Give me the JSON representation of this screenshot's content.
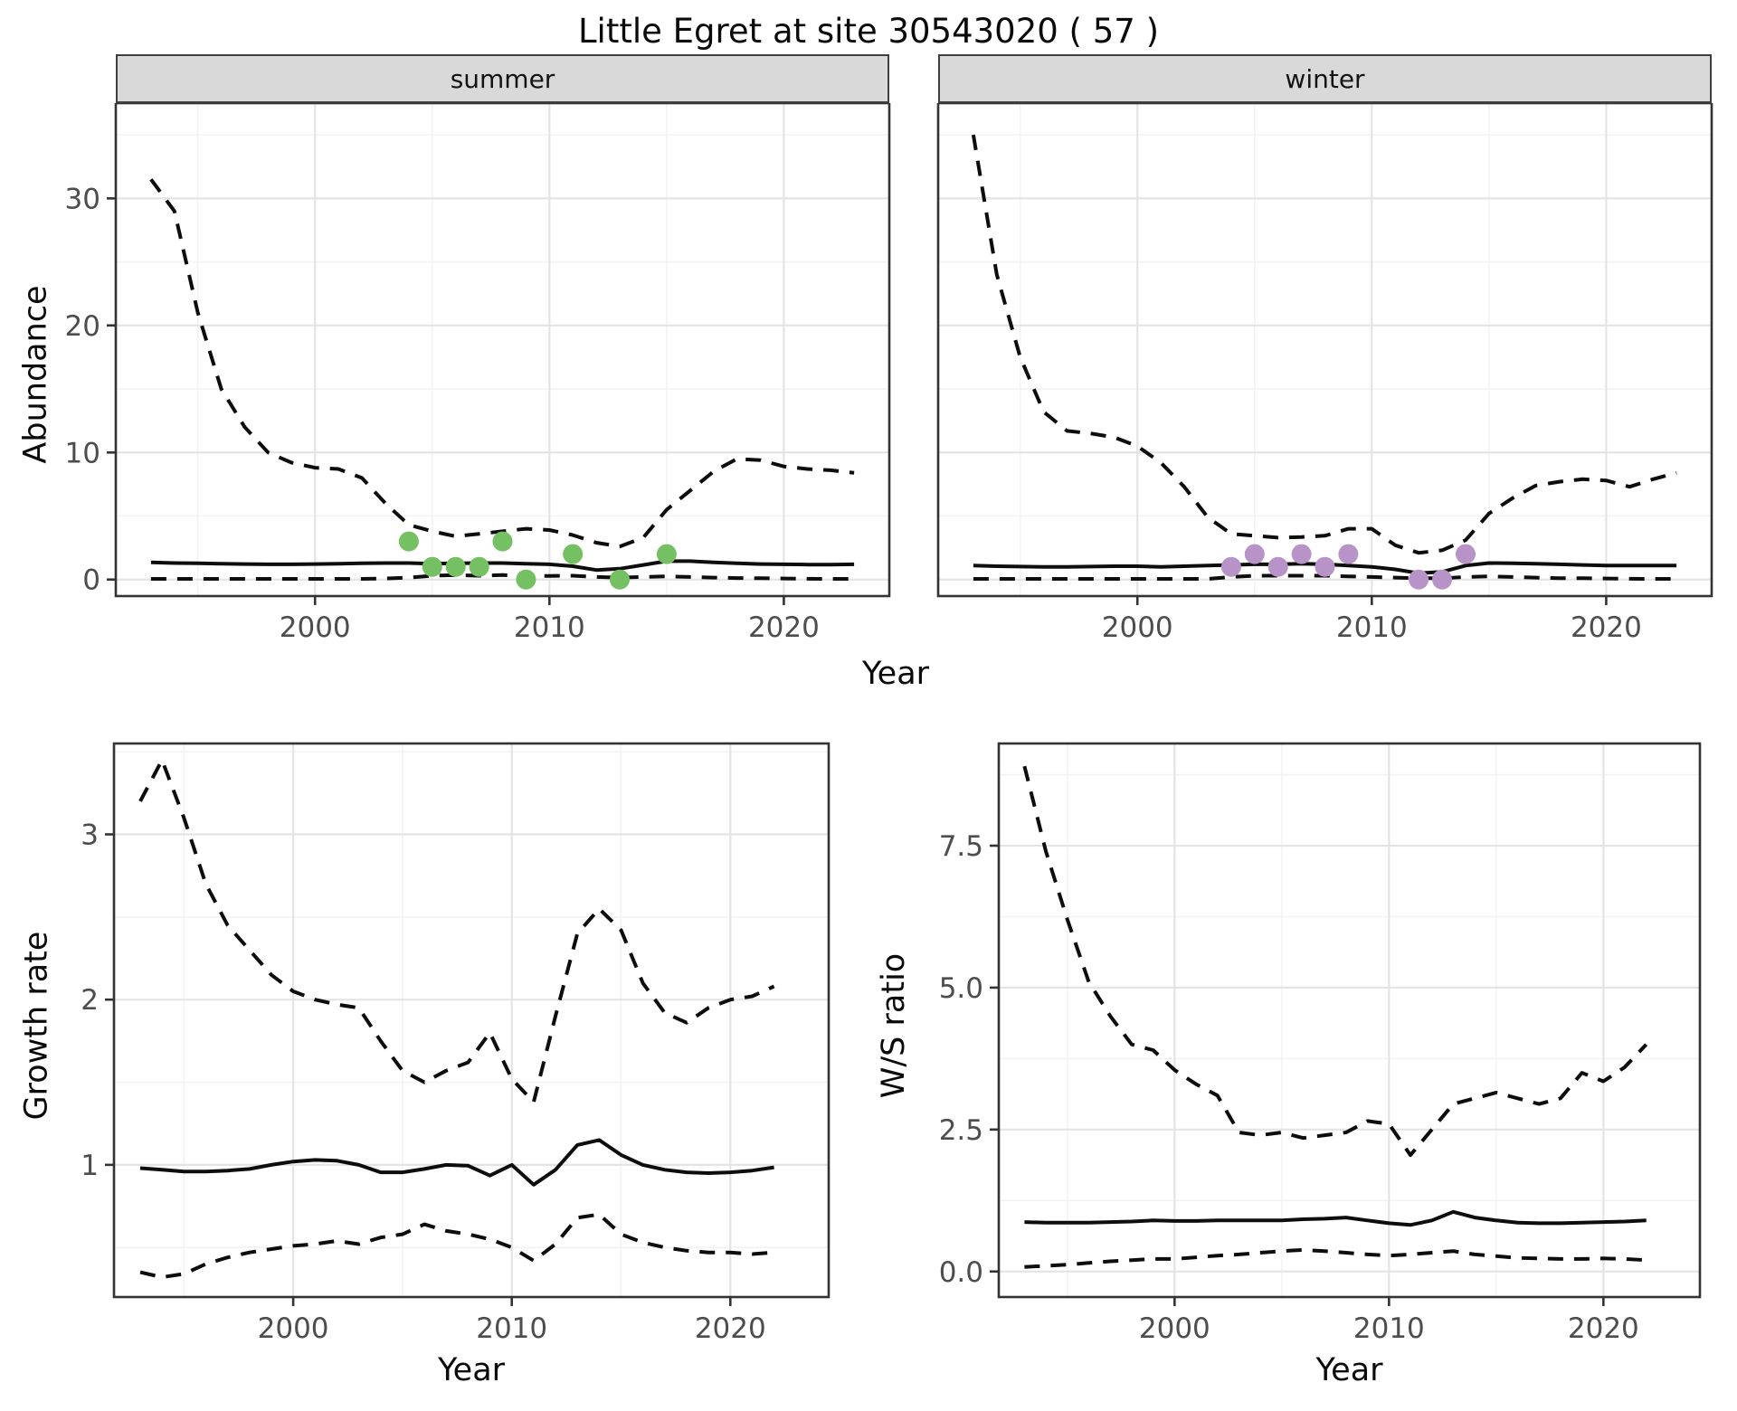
{
  "title": "Little Egret at site 30543020 ( 57 )",
  "colors": {
    "summer_points": "#74c062",
    "winter_points": "#b793c8",
    "line": "#0d0d0d",
    "grid_major": "#e4e4e4",
    "grid_minor": "#f3f3f3",
    "strip_bg": "#d9d9d9",
    "panel_border": "#333333",
    "tick_text": "#4d4d4d"
  },
  "top_row": {
    "y_axis_label": "Abundance",
    "x_axis_label": "Year"
  },
  "chart_data": [
    {
      "id": "summer",
      "type": "line",
      "facet_label": "summer",
      "x": [
        1993,
        1994,
        1995,
        1996,
        1997,
        1998,
        1999,
        2000,
        2001,
        2002,
        2003,
        2004,
        2005,
        2006,
        2007,
        2008,
        2009,
        2010,
        2011,
        2012,
        2013,
        2014,
        2015,
        2016,
        2017,
        2018,
        2019,
        2020,
        2021,
        2022,
        2023
      ],
      "series": [
        {
          "name": "upper_CI",
          "style": "dashed",
          "values": [
            31.5,
            29,
            21,
            15,
            12,
            10,
            9.2,
            8.8,
            8.7,
            8.0,
            6.0,
            4.3,
            3.8,
            3.4,
            3.6,
            3.8,
            4.0,
            3.9,
            3.5,
            2.9,
            2.6,
            3.3,
            5.5,
            7.0,
            8.5,
            9.5,
            9.4,
            8.9,
            8.7,
            8.6,
            8.4
          ]
        },
        {
          "name": "median",
          "style": "solid",
          "values": [
            1.35,
            1.3,
            1.28,
            1.25,
            1.22,
            1.2,
            1.2,
            1.22,
            1.25,
            1.28,
            1.3,
            1.3,
            1.25,
            1.28,
            1.3,
            1.3,
            1.25,
            1.2,
            1.05,
            0.75,
            0.85,
            1.15,
            1.45,
            1.45,
            1.35,
            1.28,
            1.22,
            1.2,
            1.18,
            1.18,
            1.2
          ]
        },
        {
          "name": "lower_CI",
          "style": "dashed",
          "values": [
            0.05,
            0.05,
            0.05,
            0.05,
            0.05,
            0.05,
            0.05,
            0.05,
            0.05,
            0.05,
            0.08,
            0.15,
            0.3,
            0.35,
            0.3,
            0.35,
            0.3,
            0.28,
            0.3,
            0.2,
            0.15,
            0.2,
            0.25,
            0.2,
            0.15,
            0.12,
            0.1,
            0.08,
            0.06,
            0.05,
            0.05
          ]
        }
      ],
      "points": {
        "name": "observed_counts",
        "color": "#74c062",
        "x": [
          2004,
          2005,
          2006,
          2007,
          2008,
          2009,
          2011,
          2013,
          2015
        ],
        "y": [
          3,
          1,
          1,
          1,
          3,
          0,
          2,
          0,
          2
        ]
      },
      "xlim": [
        1991.5,
        2024.5
      ],
      "ylim": [
        -1.3,
        37.5
      ],
      "x_ticks": [
        {
          "v": 2000,
          "label": "2000"
        },
        {
          "v": 2010,
          "label": "2010"
        },
        {
          "v": 2020,
          "label": "2020"
        }
      ],
      "y_ticks": [
        {
          "v": 0,
          "label": "0"
        },
        {
          "v": 10,
          "label": "10"
        },
        {
          "v": 20,
          "label": "20"
        },
        {
          "v": 30,
          "label": "30"
        }
      ],
      "x_minor": [
        1995,
        2005,
        2015
      ],
      "y_minor": [
        5,
        15,
        25,
        35
      ],
      "grid": "on"
    },
    {
      "id": "winter",
      "type": "line",
      "facet_label": "winter",
      "x": [
        1993,
        1994,
        1995,
        1996,
        1997,
        1998,
        1999,
        2000,
        2001,
        2002,
        2003,
        2004,
        2005,
        2006,
        2007,
        2008,
        2009,
        2010,
        2011,
        2012,
        2013,
        2014,
        2015,
        2016,
        2017,
        2018,
        2019,
        2020,
        2021,
        2022,
        2023
      ],
      "series": [
        {
          "name": "upper_CI",
          "style": "dashed",
          "values": [
            35,
            24,
            17.5,
            13.2,
            11.7,
            11.5,
            11.2,
            10.5,
            9.2,
            7.3,
            4.9,
            3.6,
            3.45,
            3.3,
            3.35,
            3.45,
            4.0,
            4.0,
            2.7,
            2.1,
            2.3,
            3.1,
            5.2,
            6.4,
            7.4,
            7.7,
            7.9,
            7.8,
            7.3,
            7.9,
            8.4
          ]
        },
        {
          "name": "median",
          "style": "solid",
          "values": [
            1.1,
            1.05,
            1.02,
            1.0,
            1.0,
            1.02,
            1.05,
            1.05,
            1.0,
            1.05,
            1.1,
            1.15,
            1.2,
            1.2,
            1.25,
            1.2,
            1.1,
            1.0,
            0.8,
            0.5,
            0.6,
            1.1,
            1.3,
            1.28,
            1.25,
            1.2,
            1.15,
            1.1,
            1.1,
            1.1,
            1.1
          ]
        },
        {
          "name": "lower_CI",
          "style": "dashed",
          "values": [
            0.05,
            0.05,
            0.05,
            0.05,
            0.05,
            0.05,
            0.05,
            0.05,
            0.05,
            0.05,
            0.05,
            0.2,
            0.3,
            0.3,
            0.3,
            0.3,
            0.25,
            0.2,
            0.15,
            0.1,
            0.1,
            0.2,
            0.25,
            0.2,
            0.15,
            0.1,
            0.1,
            0.08,
            0.06,
            0.05,
            0.05
          ]
        }
      ],
      "points": {
        "name": "observed_counts",
        "color": "#b793c8",
        "x": [
          2004,
          2005,
          2006,
          2007,
          2008,
          2009,
          2012,
          2013,
          2014
        ],
        "y": [
          1,
          2,
          1,
          2,
          1,
          2,
          0,
          0,
          2
        ]
      },
      "xlim": [
        1991.5,
        2024.5
      ],
      "ylim": [
        -1.3,
        37.5
      ],
      "x_ticks": [
        {
          "v": 2000,
          "label": "2000"
        },
        {
          "v": 2010,
          "label": "2010"
        },
        {
          "v": 2020,
          "label": "2020"
        }
      ],
      "y_ticks": [
        {
          "v": 0,
          "label": "0"
        },
        {
          "v": 10,
          "label": "10"
        },
        {
          "v": 20,
          "label": "20"
        },
        {
          "v": 30,
          "label": "30"
        }
      ],
      "x_minor": [
        1995,
        2005,
        2015
      ],
      "y_minor": [
        5,
        15,
        25,
        35
      ],
      "grid": "on"
    },
    {
      "id": "growth",
      "type": "line",
      "y_axis_label": "Growth rate",
      "x_axis_label": "Year",
      "x": [
        1993,
        1994,
        1995,
        1996,
        1997,
        1998,
        1999,
        2000,
        2001,
        2002,
        2003,
        2004,
        2005,
        2006,
        2007,
        2008,
        2009,
        2010,
        2011,
        2012,
        2013,
        2014,
        2015,
        2016,
        2017,
        2018,
        2019,
        2020,
        2021,
        2022
      ],
      "series": [
        {
          "name": "upper_CI",
          "style": "dashed",
          "values": [
            3.2,
            3.45,
            3.1,
            2.7,
            2.45,
            2.3,
            2.15,
            2.05,
            2.0,
            1.97,
            1.95,
            1.75,
            1.57,
            1.5,
            1.57,
            1.62,
            1.8,
            1.52,
            1.38,
            1.9,
            2.4,
            2.55,
            2.42,
            2.1,
            1.92,
            1.86,
            1.95,
            2.0,
            2.02,
            2.08
          ]
        },
        {
          "name": "median",
          "style": "solid",
          "values": [
            0.98,
            0.97,
            0.96,
            0.96,
            0.965,
            0.975,
            1.0,
            1.02,
            1.03,
            1.025,
            1.0,
            0.955,
            0.955,
            0.975,
            1.0,
            0.995,
            0.935,
            1.0,
            0.88,
            0.97,
            1.12,
            1.15,
            1.06,
            1.0,
            0.97,
            0.955,
            0.95,
            0.955,
            0.965,
            0.985
          ]
        },
        {
          "name": "lower_CI",
          "style": "dashed",
          "values": [
            0.35,
            0.32,
            0.34,
            0.4,
            0.44,
            0.47,
            0.49,
            0.51,
            0.52,
            0.54,
            0.52,
            0.56,
            0.58,
            0.64,
            0.6,
            0.58,
            0.55,
            0.5,
            0.42,
            0.52,
            0.68,
            0.7,
            0.58,
            0.53,
            0.5,
            0.48,
            0.47,
            0.47,
            0.46,
            0.47
          ]
        }
      ],
      "xlim": [
        1991.8,
        2024.5
      ],
      "ylim": [
        0.2,
        3.55
      ],
      "x_ticks": [
        {
          "v": 2000,
          "label": "2000"
        },
        {
          "v": 2010,
          "label": "2010"
        },
        {
          "v": 2020,
          "label": "2020"
        }
      ],
      "y_ticks": [
        {
          "v": 1,
          "label": "1"
        },
        {
          "v": 2,
          "label": "2"
        },
        {
          "v": 3,
          "label": "3"
        }
      ],
      "x_minor": [
        1995,
        2005,
        2015
      ],
      "y_minor": [
        0.5,
        1.5,
        2.5,
        3.5
      ],
      "grid": "on"
    },
    {
      "id": "ws",
      "type": "line",
      "y_axis_label": "W/S ratio",
      "x_axis_label": "Year",
      "x": [
        1993,
        1994,
        1995,
        1996,
        1997,
        1998,
        1999,
        2000,
        2001,
        2002,
        2003,
        2004,
        2005,
        2006,
        2007,
        2008,
        2009,
        2010,
        2011,
        2012,
        2013,
        2014,
        2015,
        2016,
        2017,
        2018,
        2019,
        2020,
        2021,
        2022
      ],
      "series": [
        {
          "name": "upper_CI",
          "style": "dashed",
          "values": [
            8.9,
            7.4,
            6.2,
            5.1,
            4.5,
            4.0,
            3.9,
            3.55,
            3.3,
            3.1,
            2.45,
            2.4,
            2.45,
            2.35,
            2.4,
            2.45,
            2.65,
            2.6,
            2.05,
            2.5,
            2.95,
            3.05,
            3.15,
            3.05,
            2.95,
            3.05,
            3.5,
            3.35,
            3.6,
            4.0
          ]
        },
        {
          "name": "median",
          "style": "solid",
          "values": [
            0.87,
            0.86,
            0.86,
            0.86,
            0.87,
            0.88,
            0.9,
            0.89,
            0.89,
            0.9,
            0.9,
            0.9,
            0.9,
            0.92,
            0.93,
            0.95,
            0.9,
            0.85,
            0.82,
            0.9,
            1.05,
            0.95,
            0.9,
            0.86,
            0.85,
            0.85,
            0.86,
            0.87,
            0.88,
            0.9
          ]
        },
        {
          "name": "lower_CI",
          "style": "dashed",
          "values": [
            0.08,
            0.1,
            0.12,
            0.15,
            0.18,
            0.2,
            0.22,
            0.22,
            0.25,
            0.28,
            0.3,
            0.33,
            0.36,
            0.38,
            0.36,
            0.33,
            0.3,
            0.28,
            0.3,
            0.33,
            0.36,
            0.3,
            0.27,
            0.24,
            0.23,
            0.22,
            0.22,
            0.23,
            0.22,
            0.2
          ]
        }
      ],
      "xlim": [
        1991.8,
        2024.5
      ],
      "ylim": [
        -0.45,
        9.3
      ],
      "x_ticks": [
        {
          "v": 2000,
          "label": "2000"
        },
        {
          "v": 2010,
          "label": "2010"
        },
        {
          "v": 2020,
          "label": "2020"
        }
      ],
      "y_ticks": [
        {
          "v": 0,
          "label": "0.0"
        },
        {
          "v": 2.5,
          "label": "2.5"
        },
        {
          "v": 5,
          "label": "5.0"
        },
        {
          "v": 7.5,
          "label": "7.5"
        }
      ],
      "x_minor": [
        1995,
        2005,
        2015
      ],
      "y_minor": [
        1.25,
        3.75,
        6.25,
        8.75
      ],
      "grid": "on"
    }
  ]
}
